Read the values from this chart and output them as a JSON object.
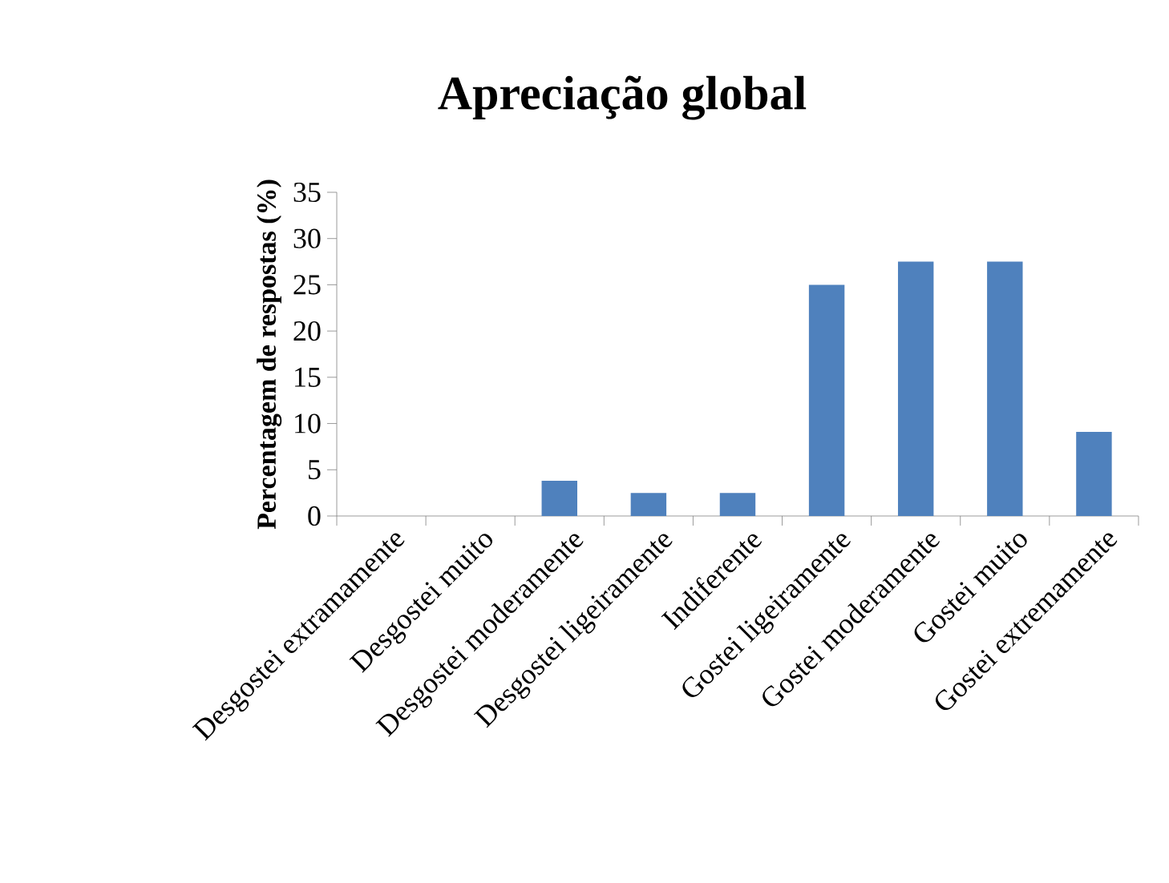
{
  "chart_data": {
    "type": "bar",
    "title": "Apreciação global",
    "ylabel": "Percentagem de respostas (%)",
    "categories": [
      "Desgostei extramamente",
      "Desgostei muito",
      "Desgostei moderamente",
      "Desgostei ligeiramente",
      "Indiferente",
      "Gostei ligeiramente",
      "Gostei moderamente",
      "Gostei muito",
      "Gostei extremamente"
    ],
    "values": [
      0,
      0,
      3.8,
      2.5,
      2.5,
      25,
      27.5,
      27.5,
      9.1
    ],
    "color": "#4f81bd",
    "ylim": [
      0,
      35
    ],
    "yticks": [
      0,
      5,
      10,
      15,
      20,
      25,
      30,
      35
    ],
    "grid": false
  }
}
